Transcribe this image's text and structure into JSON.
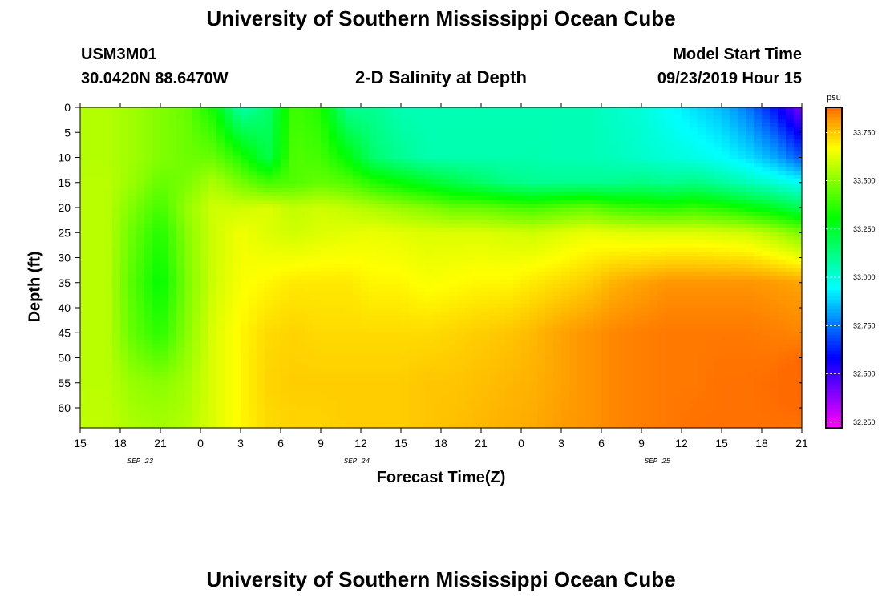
{
  "header": {
    "title": "University of Southern Mississippi Ocean Cube",
    "station_id": "USM3M01",
    "coords": "30.0420N 88.6470W",
    "plot_title": "2-D Salinity at Depth",
    "start_label": "Model Start Time",
    "start_time": "09/23/2019 Hour 15"
  },
  "footer": {
    "title": "University of Southern Mississippi Ocean Cube"
  },
  "chart_data": {
    "type": "heatmap",
    "title": "2-D Salinity at Depth",
    "xlabel": "Forecast Time(Z)",
    "ylabel": "Depth (ft)",
    "x_ticks": [
      "15",
      "18",
      "21",
      "0",
      "3",
      "6",
      "9",
      "12",
      "15",
      "18",
      "21",
      "0",
      "3",
      "6",
      "9",
      "12",
      "15",
      "18",
      "21"
    ],
    "date_labels": [
      {
        "label": "SEP 23",
        "hour_index": 1.5
      },
      {
        "label": "SEP 24",
        "hour_index": 6.9
      },
      {
        "label": "SEP 25",
        "hour_index": 14.4
      }
    ],
    "x_range_hours": [
      0,
      54
    ],
    "y_ticks": [
      0,
      5,
      10,
      15,
      20,
      25,
      30,
      35,
      40,
      45,
      50,
      55,
      60
    ],
    "ylim": [
      0,
      64
    ],
    "colorbar": {
      "unit": "psu",
      "vmin": 32.22,
      "vmax": 33.88,
      "ticks": [
        32.25,
        32.5,
        32.75,
        33.0,
        33.25,
        33.5,
        33.75
      ],
      "tick_labels": [
        "32.250",
        "32.500",
        "32.750",
        "33.000",
        "33.250",
        "33.500",
        "33.750"
      ]
    },
    "grid_hours": [
      0,
      2,
      4,
      6,
      8,
      10,
      12,
      14,
      16,
      18,
      20,
      22,
      24,
      26,
      28,
      30,
      32,
      34,
      36,
      38,
      40,
      42,
      44,
      46,
      48,
      50,
      52,
      54
    ],
    "grid_depths": [
      0,
      10,
      15,
      20,
      25,
      35,
      45,
      55,
      64
    ],
    "grid_values": [
      [
        33.56,
        33.56,
        33.53,
        33.49,
        33.45,
        33.32,
        33.06,
        33.15,
        33.4,
        33.35,
        33.1,
        33.1,
        33.05,
        33.05,
        33.05,
        33.05,
        33.05,
        33.05,
        33.05,
        33.05,
        33.02,
        33.0,
        32.95,
        32.9,
        32.85,
        32.75,
        32.6,
        32.4
      ],
      [
        33.56,
        33.56,
        33.53,
        33.49,
        33.46,
        33.45,
        33.35,
        33.2,
        33.42,
        33.4,
        33.3,
        33.15,
        33.1,
        33.06,
        33.06,
        33.06,
        33.06,
        33.06,
        33.05,
        33.05,
        33.04,
        33.02,
        33.0,
        32.98,
        32.95,
        32.9,
        32.82,
        32.7
      ],
      [
        33.57,
        33.57,
        33.52,
        33.45,
        33.48,
        33.55,
        33.47,
        33.4,
        33.42,
        33.45,
        33.42,
        33.35,
        33.3,
        33.25,
        33.2,
        33.16,
        33.12,
        33.1,
        33.1,
        33.1,
        33.1,
        33.12,
        33.1,
        33.12,
        33.08,
        33.04,
        33.0,
        32.95
      ],
      [
        33.57,
        33.57,
        33.48,
        33.4,
        33.52,
        33.6,
        33.6,
        33.62,
        33.58,
        33.6,
        33.58,
        33.55,
        33.52,
        33.49,
        33.45,
        33.45,
        33.42,
        33.4,
        33.43,
        33.45,
        33.4,
        33.38,
        33.36,
        33.38,
        33.35,
        33.3,
        33.25,
        33.18
      ],
      [
        33.57,
        33.57,
        33.45,
        33.35,
        33.5,
        33.6,
        33.65,
        33.62,
        33.6,
        33.62,
        33.63,
        33.64,
        33.63,
        33.62,
        33.62,
        33.62,
        33.61,
        33.6,
        33.62,
        33.64,
        33.63,
        33.62,
        33.62,
        33.62,
        33.61,
        33.6,
        33.55,
        33.48
      ],
      [
        33.57,
        33.57,
        33.42,
        33.3,
        33.48,
        33.6,
        33.66,
        33.68,
        33.7,
        33.7,
        33.7,
        33.68,
        33.68,
        33.66,
        33.67,
        33.68,
        33.68,
        33.7,
        33.72,
        33.74,
        33.78,
        33.8,
        33.82,
        33.82,
        33.82,
        33.82,
        33.81,
        33.8
      ],
      [
        33.57,
        33.57,
        33.44,
        33.36,
        33.5,
        33.62,
        33.68,
        33.72,
        33.73,
        33.72,
        33.72,
        33.72,
        33.72,
        33.72,
        33.73,
        33.74,
        33.75,
        33.77,
        33.8,
        33.82,
        33.84,
        33.85,
        33.86,
        33.86,
        33.86,
        33.86,
        33.85,
        33.84
      ],
      [
        33.57,
        33.57,
        33.52,
        33.5,
        33.54,
        33.62,
        33.68,
        33.73,
        33.74,
        33.74,
        33.74,
        33.74,
        33.74,
        33.75,
        33.75,
        33.76,
        33.77,
        33.78,
        33.8,
        33.82,
        33.84,
        33.85,
        33.86,
        33.86,
        33.87,
        33.87,
        33.88,
        33.92
      ],
      [
        33.58,
        33.58,
        33.55,
        33.54,
        33.56,
        33.62,
        33.68,
        33.72,
        33.73,
        33.73,
        33.74,
        33.74,
        33.74,
        33.75,
        33.76,
        33.77,
        33.78,
        33.79,
        33.81,
        33.82,
        33.84,
        33.85,
        33.86,
        33.87,
        33.87,
        33.87,
        33.87,
        33.86
      ]
    ]
  }
}
